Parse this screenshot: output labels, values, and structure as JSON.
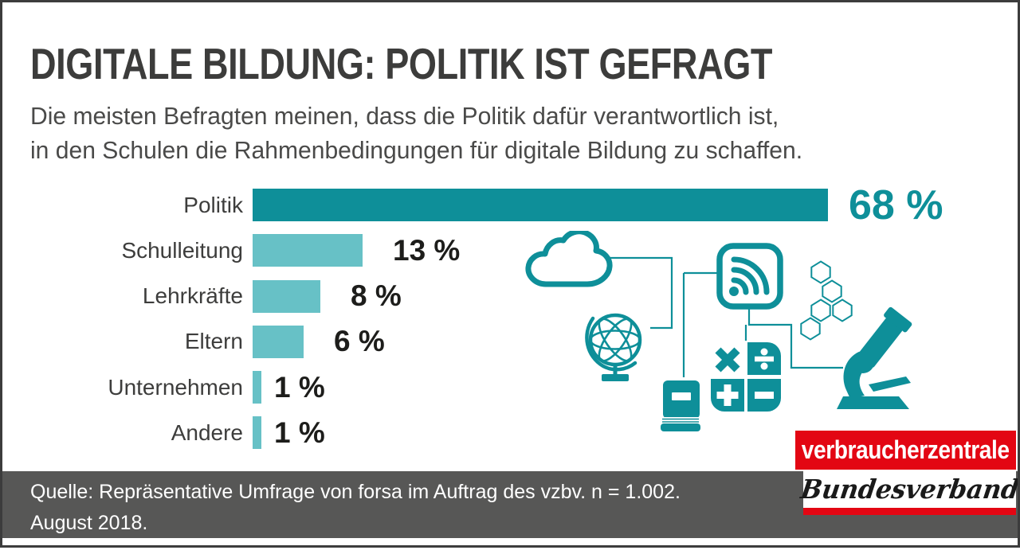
{
  "page": {
    "title": "DIGITALE BILDUNG: POLITIK IST GEFRAGT",
    "subtitle_line1": "Die meisten Befragten meinen, dass die Politik dafür verantwortlich ist,",
    "subtitle_line2": "in den Schulen die Rahmenbedingungen für digitale Bildung zu schaffen."
  },
  "chart_data": {
    "type": "bar",
    "orientation": "horizontal",
    "title": "DIGITALE BILDUNG: POLITIK IST GEFRAGT",
    "categories": [
      "Politik",
      "Schulleitung",
      "Lehrkräfte",
      "Eltern",
      "Unternehmen",
      "Andere"
    ],
    "values": [
      68,
      13,
      8,
      6,
      1,
      1
    ],
    "value_labels": [
      "68 %",
      "13 %",
      "8 %",
      "6 %",
      "1 %",
      "1 %"
    ],
    "unit": "%",
    "xlim": [
      0,
      68
    ],
    "grid": false,
    "legend": false,
    "highlight_index": 0,
    "highlight_color": "#0e8f99",
    "bar_color": "#67c1c6"
  },
  "illustration": {
    "color": "#0e8f99",
    "icons": [
      "cloud-icon",
      "globe-icon",
      "wifi-icon",
      "molecule-icon",
      "calculator-icon",
      "book-icon",
      "microscope-icon"
    ]
  },
  "footer": {
    "source_line1": "Quelle: Repräsentative Umfrage von forsa im Auftrag des vzbv. n = 1.002.",
    "source_line2": "August 2018.",
    "bg_color": "#575756"
  },
  "logo": {
    "line1": "verbraucherzentrale",
    "line2": "Bundesverband",
    "red": "#e30613"
  },
  "colors": {
    "teal_dark": "#0e8f99",
    "teal_light": "#67c1c6",
    "title_gray": "#3c3c3b",
    "text_gray": "#4a4a49",
    "footer_gray": "#575756",
    "logo_red": "#e30613",
    "frame": "#3c3c3c"
  }
}
